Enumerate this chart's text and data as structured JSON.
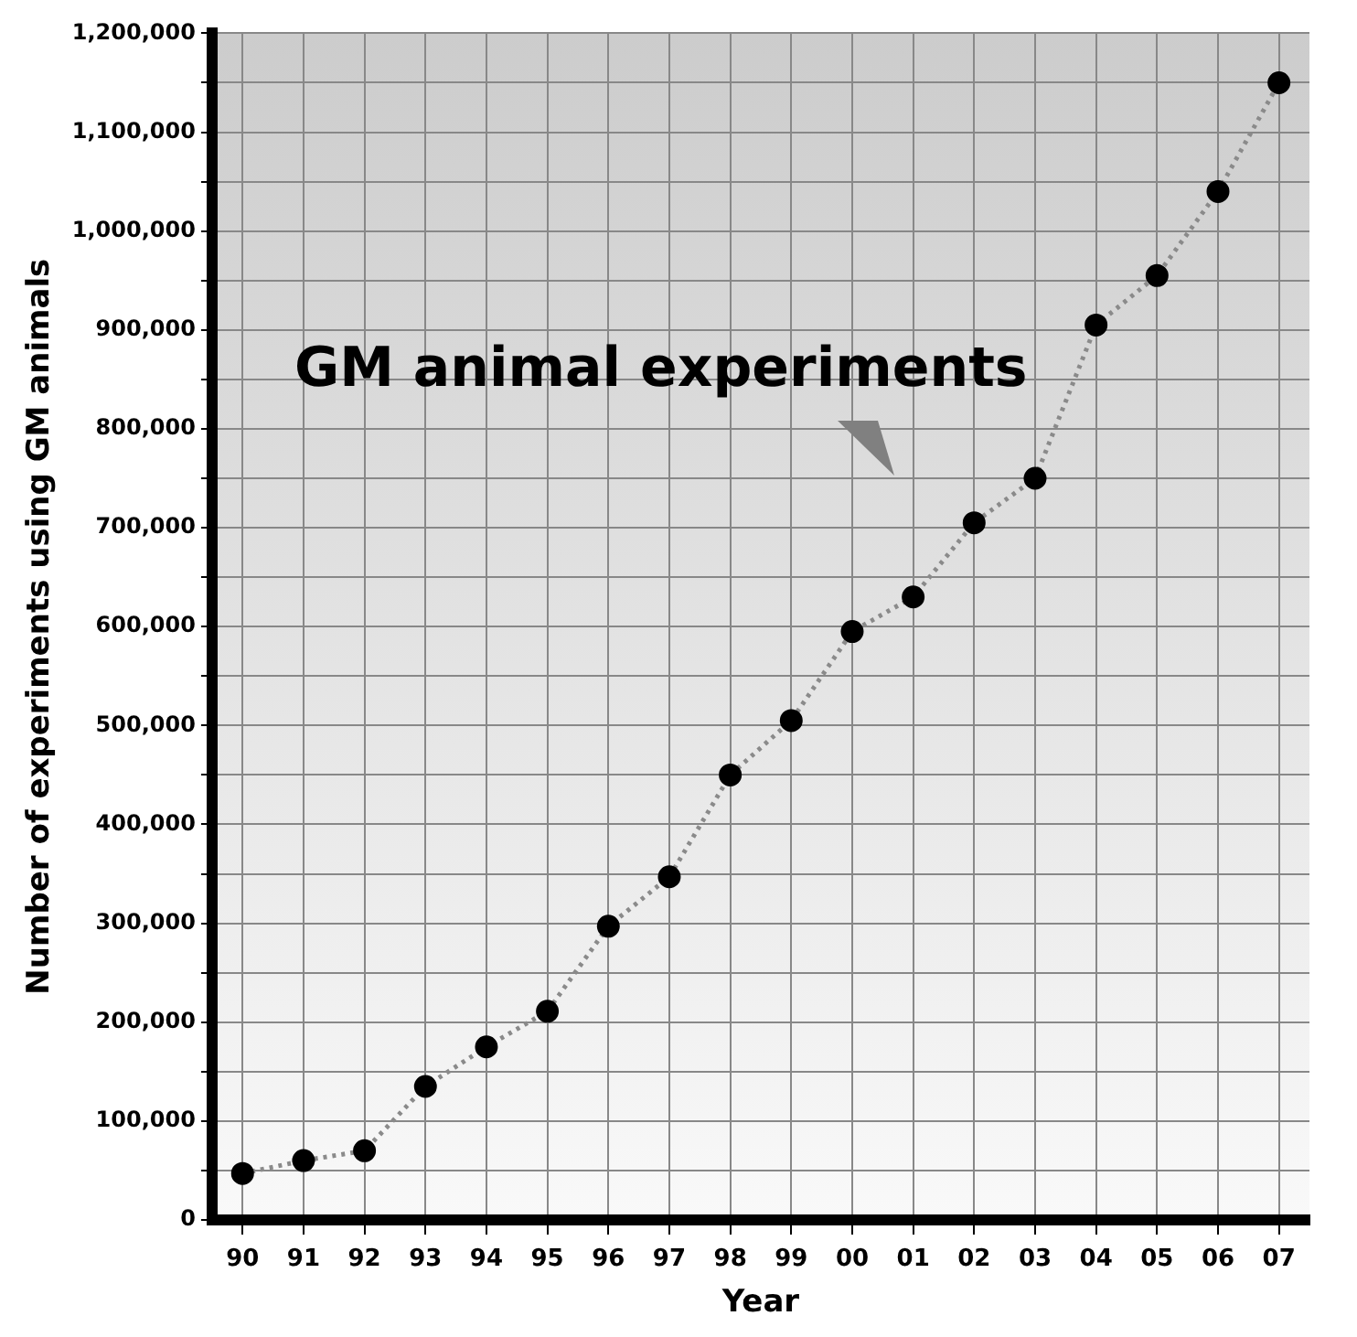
{
  "chart_data": {
    "type": "line",
    "xlabel": "Year",
    "ylabel": "Number of experiments using GM animals",
    "annotations": [
      "GM animal experiments"
    ],
    "categories": [
      "90",
      "91",
      "92",
      "93",
      "94",
      "95",
      "96",
      "97",
      "98",
      "99",
      "00",
      "01",
      "02",
      "03",
      "04",
      "05",
      "06",
      "07"
    ],
    "series": [
      {
        "color": "#000000",
        "values": [
          47000,
          60000,
          70000,
          135000,
          175000,
          211000,
          297000,
          347000,
          450000,
          505000,
          595000,
          630000,
          705000,
          750000,
          905000,
          955000,
          1040000,
          1150000
        ]
      }
    ],
    "ylim": [
      0,
      1200000
    ],
    "yticks": [
      0,
      {
        "value": 50000,
        "label": null
      },
      {
        "value": 100000,
        "label": "100,000"
      },
      {
        "value": 150000,
        "label": null
      },
      {
        "value": 200000,
        "label": "200,000"
      },
      {
        "value": 250000,
        "label": null
      },
      {
        "value": 300000,
        "label": "300,000"
      },
      {
        "value": 350000,
        "label": null
      },
      {
        "value": 400000,
        "label": "400,000"
      },
      {
        "value": 450000,
        "label": null
      },
      {
        "value": 500000,
        "label": "500,000"
      },
      {
        "value": 550000,
        "label": null
      },
      {
        "value": 600000,
        "label": "600,000"
      },
      {
        "value": 650000,
        "label": null
      },
      {
        "value": 700000,
        "label": "700,000"
      },
      {
        "value": 750000,
        "label": null
      },
      {
        "value": 800000,
        "label": "800,000"
      },
      {
        "value": 850000,
        "label": null
      },
      {
        "value": 900000,
        "label": "900,000"
      },
      {
        "value": 950000,
        "label": null
      },
      {
        "value": 1000000,
        "label": "1,000,000"
      },
      {
        "value": 1050000,
        "label": null
      },
      {
        "value": 1100000,
        "label": "1,100,000"
      },
      {
        "value": 1150000,
        "label": null
      },
      {
        "value": 1200000,
        "label": "1,200,000"
      }
    ],
    "grid": true,
    "legend": false,
    "marker": "circle",
    "line_style": "dotted"
  }
}
